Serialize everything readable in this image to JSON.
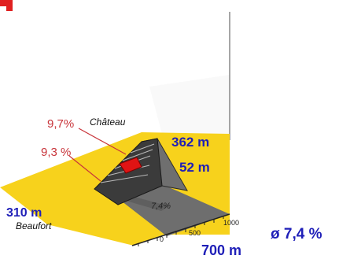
{
  "profile": {
    "start_altitude": "310 m",
    "start_name": "Beaufort",
    "end_name": "Château",
    "end_altitude": "362 m",
    "elevation_gain": "52 m",
    "segment_grade_lower": "9,3 %",
    "segment_grade_upper": "9,7%",
    "average_grade_shadow": "7,4%",
    "average_grade": "ø 7,4 %",
    "distance": "700 m",
    "scale_ticks": [
      "0",
      "500",
      "1000"
    ]
  },
  "colors": {
    "ground": "#f7d21c",
    "ramp_dark": "#3b3b3b",
    "ramp_side": "#6f6f6f",
    "steep_segment": "#e01414",
    "shadow": "#6e6e6e",
    "label_red": "#c8343a",
    "label_blue": "#1f1fb8",
    "corner_badge": "#e02020"
  }
}
